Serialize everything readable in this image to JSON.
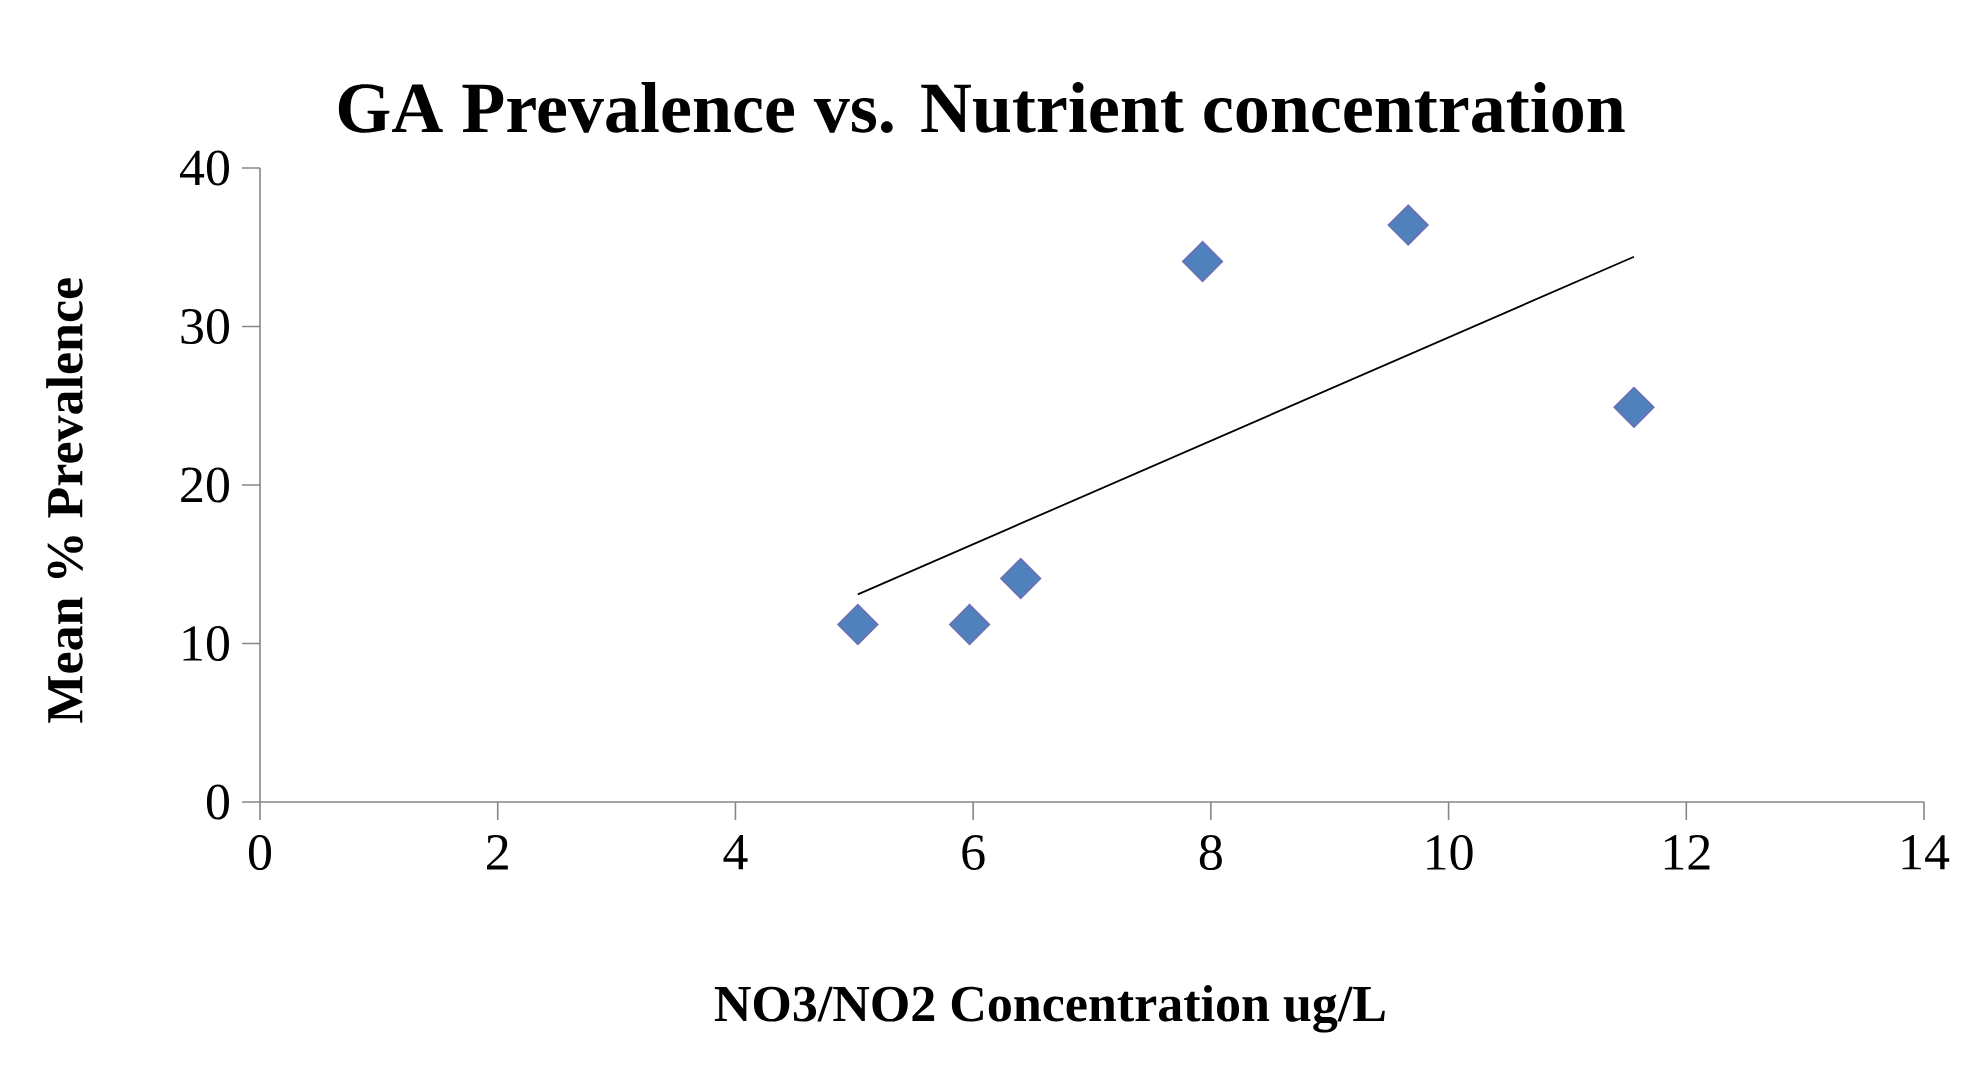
{
  "chart_data": {
    "type": "scatter",
    "title": "GA Prevalence vs. Nutrient concentration",
    "xlabel": "NO3/NO2 Concentration ug/L",
    "ylabel": "Mean % Prevalence",
    "series": [
      {
        "color": "#4f81bd",
        "marker": "diamond",
        "x": [
          5.03,
          5.97,
          6.4,
          7.93,
          9.66,
          11.56
        ],
        "values": [
          11.2,
          11.2,
          14.1,
          34.1,
          36.4,
          24.9
        ]
      },
      {
        "type": "line",
        "color": "#000000",
        "marker": "none",
        "x": [
          5.03,
          11.56
        ],
        "values": [
          13.1,
          34.4
        ]
      }
    ],
    "xlim": [
      0,
      14
    ],
    "ylim": [
      0,
      40
    ],
    "xticks": [
      0,
      2,
      4,
      6,
      8,
      10,
      12,
      14
    ],
    "yticks": [
      0,
      10,
      20,
      30,
      40
    ],
    "grid": false
  }
}
